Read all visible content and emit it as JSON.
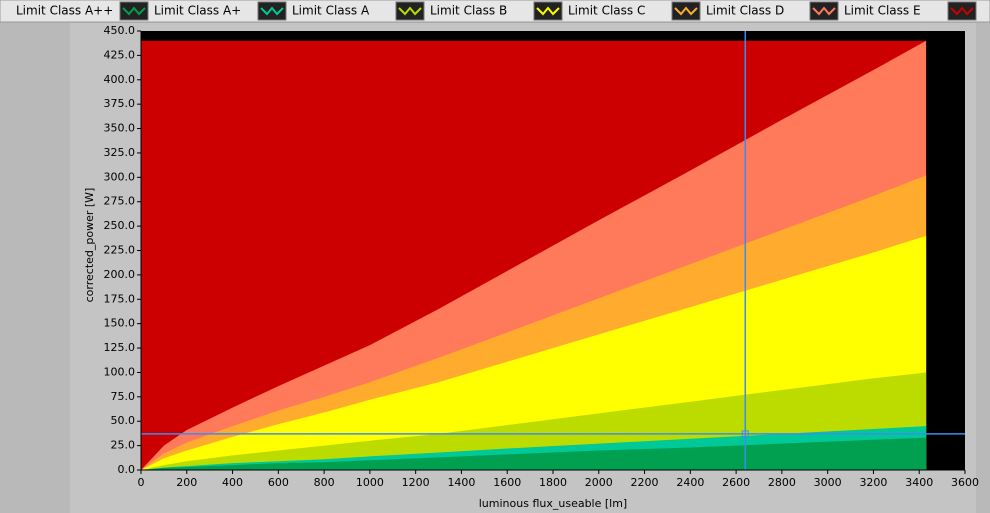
{
  "chart_data": {
    "type": "area",
    "xlabel": "luminous flux_useable [lm]",
    "ylabel": "corrected_power [W]",
    "x": [
      0,
      100,
      200,
      400,
      600,
      800,
      1000,
      1300,
      1600,
      2000,
      2400,
      2800,
      3200,
      3430
    ],
    "series": [
      {
        "name": "Limit Class A++",
        "color": "#00a050",
        "values": [
          0,
          2,
          3,
          5,
          7,
          8,
          10,
          13,
          16,
          20,
          23,
          27,
          31,
          33
        ]
      },
      {
        "name": "Limit Class A+",
        "color": "#00c896",
        "values": [
          0,
          2.5,
          4,
          7,
          9,
          11,
          14,
          18,
          22,
          27,
          32,
          37,
          42,
          45
        ]
      },
      {
        "name": "Limit Class A",
        "color": "#bcdc00",
        "values": [
          0,
          5,
          9,
          15,
          20,
          25,
          30,
          37,
          46,
          58,
          70,
          82,
          94,
          100
        ]
      },
      {
        "name": "Limit Class B",
        "color": "#ffff00",
        "values": [
          0,
          12,
          20,
          34,
          47,
          59,
          72,
          90,
          111,
          139,
          167,
          195,
          223,
          240
        ]
      },
      {
        "name": "Limit Class C",
        "color": "#ffab2e",
        "values": [
          0,
          17,
          28,
          45,
          61,
          75,
          90,
          115,
          141,
          176,
          211,
          246,
          281,
          302
        ]
      },
      {
        "name": "Limit Class D",
        "color": "#ff7a5a",
        "values": [
          0,
          25,
          41,
          64,
          86,
          107,
          128,
          165,
          204,
          256,
          307,
          359,
          410,
          440
        ]
      },
      {
        "name": "Limit Class E",
        "color": "#cc0000",
        "values": [
          440,
          440,
          440,
          440,
          440,
          440,
          440,
          440,
          440,
          440,
          440,
          440,
          440,
          440
        ]
      }
    ],
    "cursor": {
      "x": 2640,
      "y": 37,
      "color": "#3c8cf0"
    },
    "xlim": [
      0,
      3600
    ],
    "xticks": [
      0,
      200,
      400,
      600,
      800,
      1000,
      1200,
      1400,
      1600,
      1800,
      2000,
      2200,
      2400,
      2600,
      2800,
      3000,
      3200,
      3400,
      3600
    ],
    "ylim": [
      0,
      450
    ],
    "yticks": [
      {
        "value": 0,
        "label": "0.0"
      },
      {
        "value": 25,
        "label": "25.0"
      },
      {
        "value": 50,
        "label": "50.0"
      },
      {
        "value": 75,
        "label": "75.0"
      },
      {
        "value": 100,
        "label": "100.0"
      },
      {
        "value": 125,
        "label": "125.0"
      },
      {
        "value": 150,
        "label": "150.0"
      },
      {
        "value": 175,
        "label": "175.0"
      },
      {
        "value": 200,
        "label": "200.0"
      },
      {
        "value": 225,
        "label": "225.0"
      },
      {
        "value": 250,
        "label": "250.0"
      },
      {
        "value": 275,
        "label": "275.0"
      },
      {
        "value": 300,
        "label": "300.0"
      },
      {
        "value": 325,
        "label": "325.0"
      },
      {
        "value": 350,
        "label": "350.0"
      },
      {
        "value": 375,
        "label": "375.0"
      },
      {
        "value": 400,
        "label": "400.0"
      },
      {
        "value": 425,
        "label": "425.0"
      },
      {
        "value": 450,
        "label": "450.0"
      }
    ],
    "background": "#000000"
  }
}
